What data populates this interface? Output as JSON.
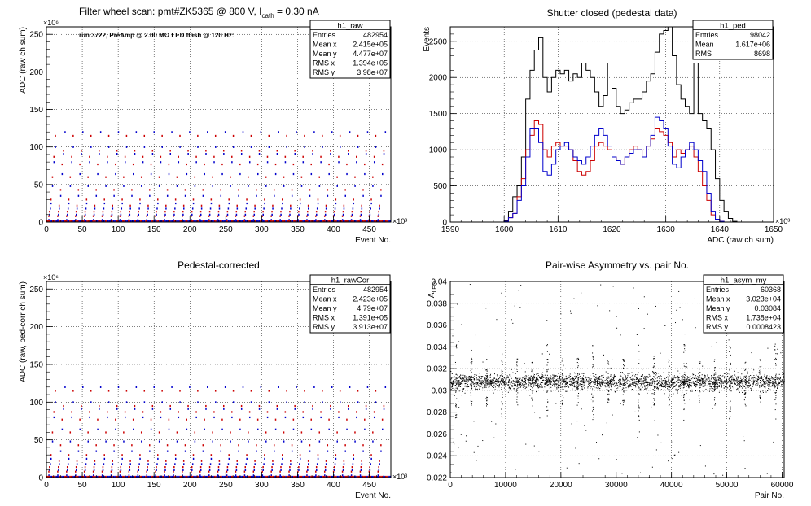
{
  "colors": {
    "black": "#000000",
    "red": "#cc0000",
    "blue": "#0000cc",
    "grid": "#000000"
  },
  "chart_data": [
    {
      "id": "h1_raw",
      "type": "scatter",
      "title_parts": {
        "main": "Filter wheel scan: pmt#ZK5365 @   800 V, I",
        "sub": "cath",
        "tail": " = 0.30 nA"
      },
      "annotation": "run 3722, PreAmp @ 2.00 MΩ LED flash @  120 Hz:",
      "xlabel": "Event No.",
      "ylabel": "ADC (raw ch sum)",
      "x_exponent": "×10³",
      "y_exponent": "×10⁶",
      "xlim": [
        0,
        480
      ],
      "ylim": [
        0,
        260
      ],
      "x_ticks": [
        0,
        50,
        100,
        150,
        200,
        250,
        300,
        350,
        400,
        450
      ],
      "y_ticks": [
        0,
        50,
        100,
        150,
        200,
        250
      ],
      "grid": true,
      "levels_red": [
        1,
        8,
        14,
        22,
        30,
        43,
        60,
        77,
        87,
        95,
        115
      ],
      "levels_blue": [
        3,
        10,
        18,
        25,
        35,
        48,
        64,
        80,
        91,
        100,
        120
      ],
      "stats": {
        "title": "h1_raw",
        "rows": [
          [
            "Entries",
            "482954"
          ],
          [
            "Mean x",
            "2.415e+05"
          ],
          [
            "Mean y",
            "4.477e+07"
          ],
          [
            "RMS x",
            "1.394e+05"
          ],
          [
            "RMS y",
            "3.98e+07"
          ]
        ]
      }
    },
    {
      "id": "h1_ped",
      "type": "line",
      "title": "Shutter closed (pedestal data)",
      "xlabel": "ADC (raw ch sum)",
      "ylabel": "Events",
      "x_exponent": "×10³",
      "xlim": [
        1590,
        1650
      ],
      "ylim": [
        0,
        2700
      ],
      "x_ticks": [
        1590,
        1600,
        1610,
        1620,
        1630,
        1640,
        1650
      ],
      "y_ticks": [
        0,
        500,
        1000,
        1500,
        2000,
        2500
      ],
      "grid": true,
      "bin_start": 1600,
      "bin_width": 0.8,
      "series": [
        {
          "color": "black",
          "values": [
            20,
            150,
            350,
            500,
            900,
            1700,
            2100,
            2380,
            2550,
            2000,
            1800,
            2000,
            2100,
            2050,
            2100,
            1950,
            2050,
            2000,
            2200,
            2100,
            2000,
            1800,
            1600,
            1750,
            2200,
            1850,
            1600,
            1500,
            1550,
            1650,
            1700,
            1700,
            1800,
            1950,
            2050,
            2350,
            2600,
            2650,
            2700,
            2300,
            1900,
            1700,
            1600,
            1500,
            2200,
            1500,
            1400,
            1300,
            1000,
            600,
            300,
            150,
            50,
            10,
            0
          ]
        },
        {
          "color": "red",
          "values": [
            10,
            60,
            120,
            350,
            600,
            1000,
            1200,
            1400,
            1350,
            1000,
            900,
            1050,
            1100,
            1050,
            1050,
            1000,
            850,
            700,
            650,
            700,
            850,
            1050,
            1100,
            1050,
            1000,
            900,
            850,
            800,
            900,
            1000,
            1050,
            1000,
            900,
            1050,
            1150,
            1300,
            1250,
            1200,
            1100,
            900,
            1000,
            950,
            1000,
            1050,
            900,
            700,
            500,
            300,
            100,
            40,
            10,
            0,
            0,
            0,
            0
          ]
        },
        {
          "color": "blue",
          "values": [
            10,
            60,
            120,
            300,
            500,
            900,
            1300,
            1300,
            1100,
            700,
            650,
            800,
            1000,
            1050,
            1100,
            1000,
            900,
            850,
            800,
            900,
            1050,
            1200,
            1300,
            1200,
            1050,
            900,
            850,
            800,
            900,
            950,
            1000,
            1000,
            900,
            1050,
            1200,
            1450,
            1400,
            1300,
            1050,
            800,
            750,
            900,
            1000,
            1100,
            1000,
            850,
            700,
            400,
            150,
            40,
            10,
            0,
            0,
            0,
            0
          ]
        }
      ],
      "stats": {
        "title": "h1_ped",
        "rows": [
          [
            "Entries",
            "98042"
          ],
          [
            "Mean",
            "1.617e+06"
          ],
          [
            "RMS",
            "8698"
          ]
        ]
      }
    },
    {
      "id": "h1_rawCor",
      "type": "scatter",
      "title": "Pedestal-corrected",
      "xlabel": "Event No.",
      "ylabel": "ADC (raw, ped-corr ch sum)",
      "x_exponent": "×10³",
      "y_exponent": "×10⁶",
      "xlim": [
        0,
        480
      ],
      "ylim": [
        0,
        260
      ],
      "x_ticks": [
        0,
        50,
        100,
        150,
        200,
        250,
        300,
        350,
        400,
        450
      ],
      "y_ticks": [
        0,
        50,
        100,
        150,
        200,
        250
      ],
      "grid": true,
      "levels_red": [
        1,
        8,
        14,
        22,
        30,
        43,
        60,
        77,
        87,
        95,
        115
      ],
      "levels_blue": [
        3,
        10,
        18,
        25,
        35,
        48,
        64,
        80,
        91,
        100,
        120
      ],
      "stats": {
        "title": "h1_rawCor",
        "rows": [
          [
            "Entries",
            "482954"
          ],
          [
            "Mean x",
            "2.423e+05"
          ],
          [
            "Mean y",
            "4.79e+07"
          ],
          [
            "RMS x",
            "1.391e+05"
          ],
          [
            "RMS y",
            "3.913e+07"
          ]
        ]
      }
    },
    {
      "id": "h1_asym_my",
      "type": "scatter",
      "title": "Pair-wise Asymmetry vs. pair No.",
      "xlabel": "Pair No.",
      "ylabel_parts": {
        "main": "A",
        "sub": "LED"
      },
      "xlim": [
        0,
        60368
      ],
      "ylim": [
        0.022,
        0.04
      ],
      "x_ticks": [
        0,
        10000,
        20000,
        30000,
        40000,
        50000,
        60000
      ],
      "y_ticks": [
        0.022,
        0.024,
        0.026,
        0.028,
        0.03,
        0.032,
        0.034,
        0.036,
        0.038,
        0.04
      ],
      "y_tick_labels": [
        "0.022",
        "0.024",
        "0.026",
        "0.028",
        "0.03",
        "0.032",
        "0.034",
        "0.036",
        "0.038",
        "0.04"
      ],
      "grid": true,
      "band_center": 0.0308,
      "band_halfwidth": 0.0008,
      "stats": {
        "title": "h1_asym_my",
        "rows": [
          [
            "Entries",
            "60368"
          ],
          [
            "Mean x",
            "3.023e+04"
          ],
          [
            "Mean y",
            "0.03084"
          ],
          [
            "RMS x",
            "1.738e+04"
          ],
          [
            "RMS y",
            "0.0008423"
          ]
        ]
      }
    }
  ]
}
